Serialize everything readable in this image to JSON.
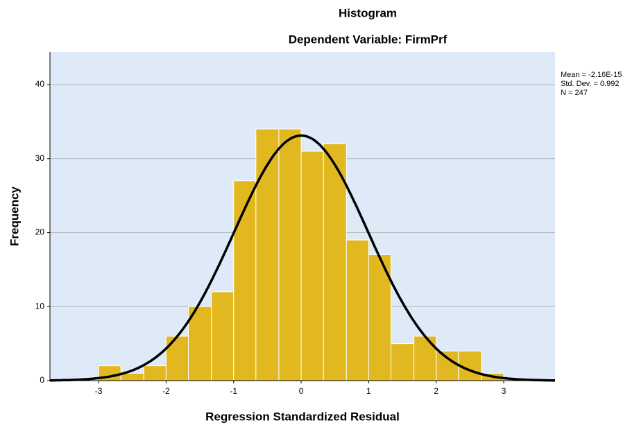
{
  "chart_data": {
    "type": "histogram",
    "title": "Histogram",
    "subtitle": "Dependent Variable: FirmPrf",
    "x_label": "Regression Standardized Residual",
    "y_label": "Frequency",
    "bins": [
      -3,
      -2.67,
      -2.33,
      -2,
      -1.67,
      -1.33,
      -1,
      -0.67,
      -0.33,
      0,
      0.33,
      0.67,
      1,
      1.33,
      1.67,
      2,
      2.33,
      2.67,
      3
    ],
    "values": [
      2,
      1,
      2,
      6,
      10,
      12,
      27,
      34,
      34,
      31,
      32,
      19,
      17,
      5,
      6,
      4,
      4,
      1
    ],
    "color": "#e2b820",
    "curve_color": "#000000",
    "background": "#dfeaf8",
    "stats": [
      {
        "value": -2.16e-15,
        "label": "Mean = -2.16E-15"
      },
      {
        "value": 0.992,
        "label": "Std. Dev. = 0.992"
      },
      {
        "value": 247,
        "label": "N = 247"
      }
    ],
    "xlim": [
      -3.72,
      3.76
    ],
    "ylim": [
      0,
      44.4
    ],
    "xticks": [
      -3,
      -2,
      -1,
      0,
      1,
      2,
      3
    ],
    "yticks": [
      0,
      10,
      20,
      30,
      40
    ],
    "grid": true
  }
}
